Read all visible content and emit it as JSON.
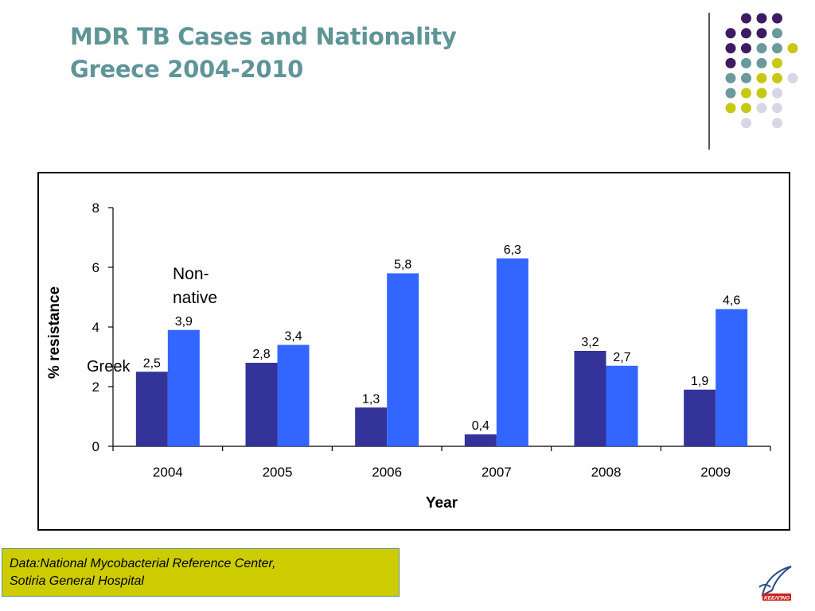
{
  "slide": {
    "title_line1": "MDR TB Cases and Nationality",
    "title_line2": "Greece 2004-2010",
    "source_line1": "Data:National Mycobacterial Reference Center,",
    "source_line2": "Sotiria General Hospital",
    "logo_text": "KEEΛΠΝΟ",
    "colors": {
      "title": "#5f9597",
      "source_box": "#cccc00",
      "dot_purple": "#3e1a64",
      "dot_teal": "#6a9a9b",
      "dot_yellow": "#c8c814",
      "dot_lavender": "#d6d6e6"
    }
  },
  "chart_data": {
    "type": "bar",
    "categories": [
      "2004",
      "2005",
      "2006",
      "2007",
      "2008",
      "2009"
    ],
    "series": [
      {
        "name": "Greek",
        "color": "#333399",
        "values": [
          2.5,
          2.8,
          1.3,
          0.4,
          3.2,
          1.9
        ],
        "labels": [
          "2,5",
          "2,8",
          "1,3",
          "0,4",
          "3,2",
          "1,9"
        ]
      },
      {
        "name": "Non-native",
        "color": "#3366ff",
        "values": [
          3.9,
          3.4,
          5.8,
          6.3,
          2.7,
          4.6
        ],
        "labels": [
          "3,9",
          "3,4",
          "5,8",
          "6,3",
          "2,7",
          "4,6"
        ]
      }
    ],
    "xlabel": "Year",
    "ylabel": "% resistance",
    "ylim": [
      0,
      8
    ],
    "yticks": [
      0,
      2,
      4,
      6,
      8
    ],
    "grid": false,
    "series_label_1": "Greek",
    "series_label_2_line1": "Non-",
    "series_label_2_line2": "native"
  }
}
